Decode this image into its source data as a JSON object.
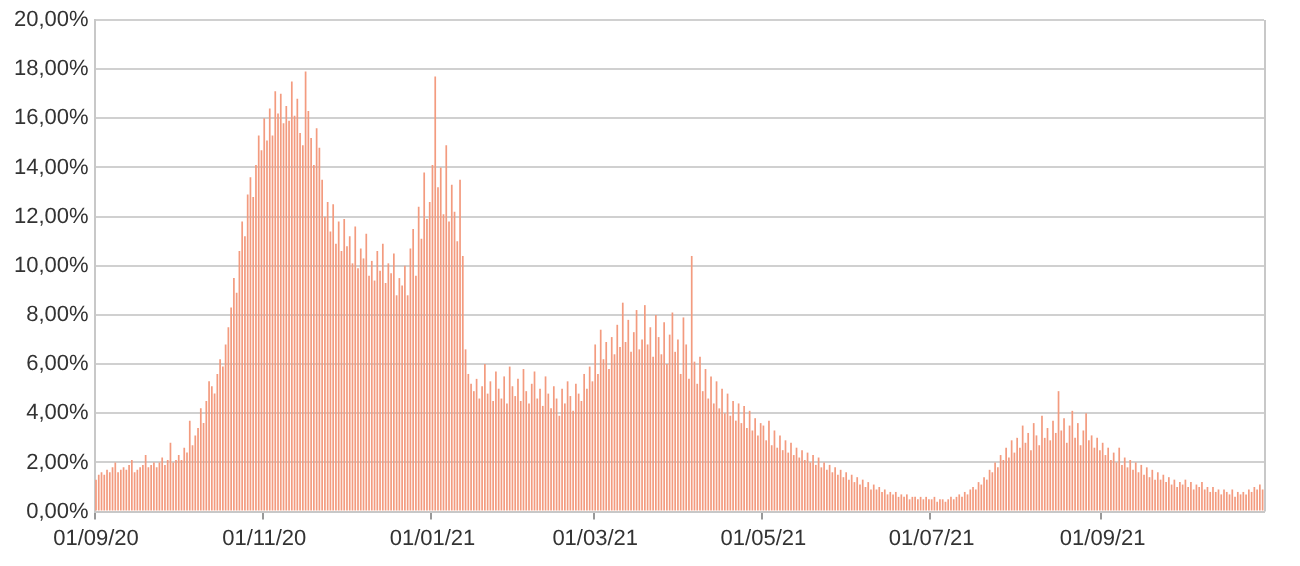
{
  "chart_data": {
    "type": "bar",
    "color": "#f39b7f",
    "grid": "y",
    "legend": false,
    "ylim": [
      0,
      20
    ],
    "yticks": [
      {
        "value": 0,
        "label": "0,00%"
      },
      {
        "value": 2,
        "label": "2,00%"
      },
      {
        "value": 4,
        "label": "4,00%"
      },
      {
        "value": 6,
        "label": "6,00%"
      },
      {
        "value": 8,
        "label": "8,00%"
      },
      {
        "value": 10,
        "label": "10,00%"
      },
      {
        "value": 12,
        "label": "12,00%"
      },
      {
        "value": 14,
        "label": "14,00%"
      },
      {
        "value": 16,
        "label": "16,00%"
      },
      {
        "value": 18,
        "label": "18,00%"
      },
      {
        "value": 20,
        "label": "20,00%"
      }
    ],
    "categories": [
      "01/09/20",
      null,
      null,
      null,
      null,
      null,
      null,
      null,
      null,
      null,
      null,
      null,
      null,
      null,
      null,
      null,
      null,
      null,
      null,
      null,
      null,
      null,
      null,
      null,
      null,
      null,
      null,
      null,
      null,
      null,
      null,
      null,
      null,
      null,
      null,
      null,
      null,
      null,
      null,
      null,
      null,
      null,
      null,
      null,
      null,
      null,
      null,
      null,
      null,
      null,
      null,
      null,
      null,
      null,
      null,
      null,
      null,
      null,
      null,
      null,
      null,
      "01/11/20",
      null,
      null,
      null,
      null,
      null,
      null,
      null,
      null,
      null,
      null,
      null,
      null,
      null,
      null,
      null,
      null,
      null,
      null,
      null,
      null,
      null,
      null,
      null,
      null,
      null,
      null,
      null,
      null,
      null,
      null,
      null,
      null,
      null,
      null,
      null,
      null,
      null,
      null,
      null,
      null,
      null,
      null,
      null,
      null,
      null,
      null,
      null,
      null,
      null,
      null,
      null,
      null,
      null,
      null,
      null,
      null,
      null,
      null,
      null,
      null,
      "01/01/21",
      null,
      null,
      null,
      null,
      null,
      null,
      null,
      null,
      null,
      null,
      null,
      null,
      null,
      null,
      null,
      null,
      null,
      null,
      null,
      null,
      null,
      null,
      null,
      null,
      null,
      null,
      null,
      null,
      null,
      null,
      null,
      null,
      null,
      null,
      null,
      null,
      null,
      null,
      null,
      null,
      null,
      null,
      null,
      null,
      null,
      null,
      null,
      null,
      null,
      null,
      null,
      null,
      null,
      null,
      null,
      null,
      null,
      null,
      "01/03/21",
      null,
      null,
      null,
      null,
      null,
      null,
      null,
      null,
      null,
      null,
      null,
      null,
      null,
      null,
      null,
      null,
      null,
      null,
      null,
      null,
      null,
      null,
      null,
      null,
      null,
      null,
      null,
      null,
      null,
      null,
      null,
      null,
      null,
      null,
      null,
      null,
      null,
      null,
      null,
      null,
      null,
      null,
      null,
      null,
      null,
      null,
      null,
      null,
      null,
      null,
      null,
      null,
      null,
      null,
      null,
      null,
      null,
      null,
      null,
      null,
      "01/05/21",
      null,
      null,
      null,
      null,
      null,
      null,
      null,
      null,
      null,
      null,
      null,
      null,
      null,
      null,
      null,
      null,
      null,
      null,
      null,
      null,
      null,
      null,
      null,
      null,
      null,
      null,
      null,
      null,
      null,
      null,
      null,
      null,
      null,
      null,
      null,
      null,
      null,
      null,
      null,
      null,
      null,
      null,
      null,
      null,
      null,
      null,
      null,
      null,
      null,
      null,
      null,
      null,
      null,
      null,
      null,
      null,
      null,
      null,
      null,
      null,
      "01/07/21",
      null,
      null,
      null,
      null,
      null,
      null,
      null,
      null,
      null,
      null,
      null,
      null,
      null,
      null,
      null,
      null,
      null,
      null,
      null,
      null,
      null,
      null,
      null,
      null,
      null,
      null,
      null,
      null,
      null,
      null,
      null,
      null,
      null,
      null,
      null,
      null,
      null,
      null,
      null,
      null,
      null,
      null,
      null,
      null,
      null,
      null,
      null,
      null,
      null,
      null,
      null,
      null,
      null,
      null,
      null,
      null,
      null,
      null,
      null,
      null,
      null,
      "01/09/21",
      null,
      null,
      null,
      null,
      null,
      null,
      null,
      null,
      null,
      null,
      null,
      null,
      null,
      null,
      null,
      null,
      null,
      null,
      null,
      null,
      null,
      null,
      null,
      null,
      null,
      null,
      null,
      null,
      null,
      null,
      null,
      null,
      null,
      null,
      null,
      null,
      null,
      null,
      null,
      null,
      null,
      null,
      null,
      null,
      null,
      null,
      null,
      null,
      null,
      null,
      null,
      null,
      null,
      null,
      null,
      null,
      null,
      null
    ],
    "values": [
      1.3,
      1.5,
      1.6,
      1.5,
      1.7,
      1.6,
      1.8,
      2.0,
      1.6,
      1.7,
      1.8,
      1.7,
      1.9,
      2.1,
      1.6,
      1.7,
      1.8,
      1.9,
      2.3,
      1.8,
      1.9,
      2.0,
      1.8,
      2.0,
      2.2,
      1.9,
      2.1,
      2.8,
      2.0,
      2.1,
      2.3,
      2.1,
      2.6,
      2.4,
      3.7,
      2.7,
      3.1,
      3.4,
      4.2,
      3.6,
      4.5,
      5.3,
      5.1,
      4.8,
      5.6,
      6.2,
      5.9,
      6.8,
      7.5,
      8.3,
      9.5,
      8.9,
      10.6,
      11.8,
      11.2,
      12.9,
      13.6,
      12.8,
      14.1,
      15.3,
      14.7,
      16.0,
      15.1,
      16.4,
      15.3,
      17.1,
      16.2,
      17.0,
      15.8,
      16.5,
      15.9,
      17.5,
      16.1,
      16.8,
      15.4,
      14.9,
      17.9,
      16.3,
      15.2,
      14.1,
      15.6,
      14.8,
      13.5,
      12.0,
      12.6,
      11.4,
      12.5,
      10.9,
      11.8,
      10.6,
      11.9,
      10.8,
      11.2,
      10.1,
      11.6,
      9.9,
      10.7,
      10.3,
      11.3,
      9.6,
      10.2,
      9.4,
      10.6,
      9.8,
      10.9,
      9.3,
      10.1,
      9.7,
      10.5,
      8.8,
      9.5,
      9.2,
      10.0,
      8.8,
      10.7,
      11.5,
      9.6,
      12.4,
      11.1,
      13.8,
      11.9,
      12.6,
      14.1,
      17.7,
      13.2,
      14.0,
      12.1,
      14.9,
      11.8,
      13.3,
      12.2,
      11.0,
      13.5,
      10.4,
      6.6,
      5.6,
      5.2,
      4.9,
      5.4,
      4.6,
      5.1,
      6.0,
      4.8,
      5.3,
      4.5,
      5.7,
      5.0,
      4.6,
      5.5,
      4.4,
      5.9,
      5.1,
      4.7,
      5.4,
      4.5,
      5.8,
      4.9,
      4.4,
      5.2,
      5.7,
      4.6,
      5.0,
      4.3,
      5.5,
      4.8,
      4.2,
      5.1,
      4.6,
      3.9,
      5.0,
      4.4,
      5.3,
      4.7,
      4.1,
      5.2,
      4.8,
      4.5,
      5.6,
      5.0,
      5.9,
      5.3,
      6.8,
      5.6,
      7.4,
      6.2,
      6.9,
      5.8,
      7.1,
      6.4,
      7.6,
      6.7,
      8.5,
      6.9,
      7.8,
      6.5,
      7.3,
      8.2,
      6.6,
      7.0,
      8.4,
      6.8,
      7.5,
      6.3,
      8.0,
      7.1,
      6.4,
      7.7,
      6.0,
      7.2,
      8.1,
      6.5,
      7.0,
      5.6,
      7.9,
      6.8,
      5.4,
      10.4,
      6.1,
      5.2,
      6.3,
      4.9,
      5.8,
      4.6,
      5.5,
      4.4,
      5.3,
      4.2,
      5.0,
      4.0,
      4.8,
      3.9,
      4.5,
      3.7,
      4.4,
      3.6,
      4.3,
      3.4,
      4.1,
      3.3,
      3.8,
      3.1,
      3.6,
      3.5,
      2.9,
      3.7,
      2.7,
      3.3,
      2.6,
      3.1,
      2.5,
      2.9,
      2.4,
      2.8,
      2.3,
      2.6,
      2.2,
      2.5,
      2.1,
      2.4,
      2.0,
      2.3,
      1.9,
      2.2,
      1.8,
      2.0,
      1.7,
      1.9,
      1.6,
      1.8,
      1.5,
      1.7,
      1.4,
      1.6,
      1.3,
      1.5,
      1.2,
      1.4,
      1.1,
      1.3,
      1.0,
      1.2,
      0.9,
      1.1,
      0.9,
      1.0,
      0.8,
      0.9,
      0.7,
      0.8,
      0.7,
      0.8,
      0.6,
      0.7,
      0.6,
      0.7,
      0.5,
      0.6,
      0.6,
      0.5,
      0.6,
      0.5,
      0.6,
      0.5,
      0.5,
      0.6,
      0.4,
      0.5,
      0.5,
      0.4,
      0.5,
      0.6,
      0.5,
      0.6,
      0.7,
      0.6,
      0.8,
      0.7,
      0.9,
      1.0,
      0.9,
      1.2,
      1.1,
      1.4,
      1.3,
      1.7,
      1.6,
      2.0,
      1.8,
      2.3,
      2.1,
      2.6,
      2.2,
      2.9,
      2.4,
      3.0,
      2.6,
      3.5,
      2.8,
      3.2,
      2.5,
      3.6,
      3.1,
      2.7,
      3.9,
      3.0,
      3.4,
      2.9,
      3.7,
      3.2,
      4.9,
      3.3,
      3.8,
      2.8,
      3.5,
      4.1,
      3.0,
      3.6,
      2.7,
      3.3,
      4.0,
      2.9,
      3.1,
      2.6,
      3.0,
      2.5,
      2.8,
      2.3,
      2.6,
      2.1,
      2.4,
      2.0,
      2.6,
      1.9,
      2.2,
      1.8,
      2.1,
      1.7,
      2.0,
      1.6,
      1.9,
      1.5,
      1.8,
      1.4,
      1.7,
      1.3,
      1.6,
      1.3,
      1.5,
      1.2,
      1.4,
      1.1,
      1.3,
      1.0,
      1.2,
      1.1,
      1.3,
      1.0,
      1.2,
      0.9,
      1.1,
      1.0,
      1.2,
      0.9,
      1.0,
      0.8,
      1.0,
      0.8,
      0.9,
      0.7,
      0.9,
      0.8,
      0.7,
      0.9,
      0.6,
      0.8,
      0.7,
      0.8,
      0.7,
      0.9,
      0.8,
      1.0,
      0.9,
      1.1,
      0.9
    ]
  }
}
